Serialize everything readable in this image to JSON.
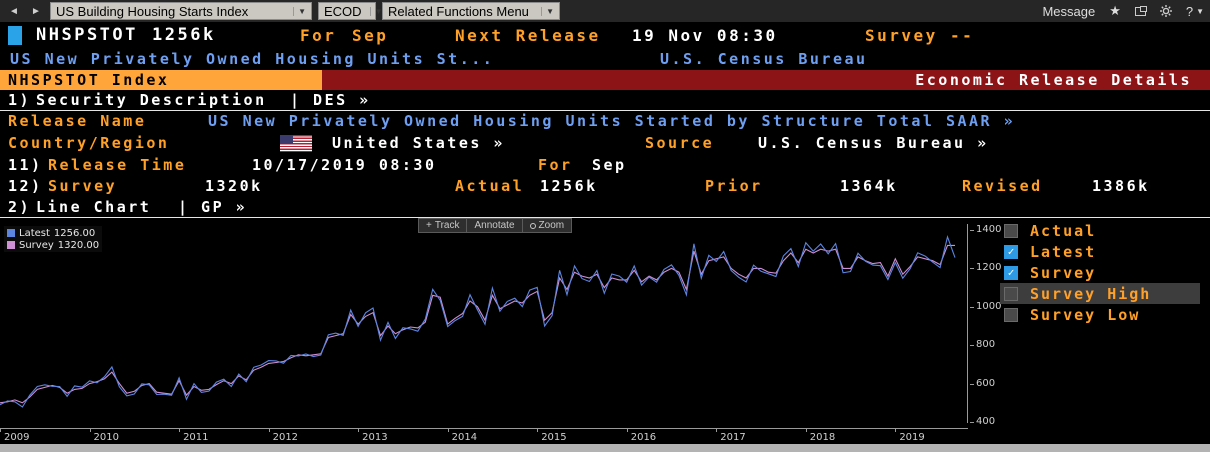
{
  "toolbar": {
    "back_icon": "◄",
    "forward_icon": "►",
    "security_dropdown": "US Building Housing Starts Index",
    "ecod_dropdown": "ECOD",
    "related_functions_dropdown": "Related Functions Menu",
    "message_label": "Message",
    "star_icon": "★",
    "help_label": "?",
    "caret_icon": "▼"
  },
  "header": {
    "ticker": "NHSPSTOT",
    "value": "1256k",
    "for_label": "For",
    "for_period": "Sep",
    "next_release_label": "Next Release",
    "next_release_value": "19 Nov 08:30",
    "survey_label": "Survey",
    "survey_value": "--",
    "description": "US New Privately Owned Housing Units St...",
    "source": "U.S. Census Bureau"
  },
  "titlebar": {
    "left": "NHSPSTOT Index",
    "right": "Economic Release Details"
  },
  "sections": {
    "security_description": {
      "num": "1)",
      "label": "Security Description",
      "link": "| DES  »"
    },
    "line_chart": {
      "num": "2)",
      "label": "Line Chart",
      "link": "| GP  »"
    }
  },
  "details": {
    "release_name_label": "Release Name",
    "release_name_value": "US New Privately Owned Housing Units Started by Structure Total SAAR »",
    "country_label": "Country/Region",
    "country_value": "United States »",
    "source_label": "Source",
    "source_value": "U.S. Census Bureau »",
    "release_time_num": "11)",
    "release_time_label": "Release Time",
    "release_time_value": "10/17/2019 08:30",
    "release_for_label": "For",
    "release_for_value": "Sep",
    "survey_num": "12)",
    "survey_label": "Survey",
    "survey_value": "1320k",
    "actual_label": "Actual",
    "actual_value": "1256k",
    "prior_label": "Prior",
    "prior_value": "1364k",
    "revised_label": "Revised",
    "revised_value": "1386k"
  },
  "chart_tools": {
    "plus_icon": "+",
    "track": "Track",
    "annotate": "Annotate",
    "zoom": "Zoom"
  },
  "chart_legend": [
    {
      "label": "Latest",
      "value": "1256.00",
      "color": "#5b85e0"
    },
    {
      "label": "Survey",
      "value": "1320.00",
      "color": "#cf8fd4"
    }
  ],
  "right_panel": [
    {
      "label": "Actual",
      "checked": false,
      "highlight": false
    },
    {
      "label": "Latest",
      "checked": true,
      "highlight": false
    },
    {
      "label": "Survey",
      "checked": true,
      "highlight": false
    },
    {
      "label": "Survey High",
      "checked": false,
      "highlight": true
    },
    {
      "label": "Survey Low",
      "checked": false,
      "highlight": false
    }
  ],
  "chart_data": {
    "type": "line",
    "title": "US New Privately Owned Housing Units Started by Structure Total SAAR",
    "x_unit": "monthly",
    "x_range": [
      "2009-01",
      "2019-09"
    ],
    "x_years": [
      2009,
      2010,
      2011,
      2012,
      2013,
      2014,
      2015,
      2016,
      2017,
      2018,
      2019
    ],
    "ylim": [
      400,
      1400
    ],
    "yticks": [
      400,
      600,
      800,
      1000,
      1200,
      1400
    ],
    "grid": false,
    "legend_position": "top-left",
    "background": "#000000",
    "series": [
      {
        "name": "Latest",
        "color": "#5b85e0",
        "values": [
          490,
          510,
          505,
          478,
          540,
          585,
          594,
          586,
          585,
          534,
          588,
          581,
          614,
          604,
          636,
          687,
          583,
          536,
          546,
          599,
          594,
          543,
          545,
          539,
          630,
          518,
          600,
          554,
          561,
          608,
          623,
          585,
          650,
          610,
          685,
          697,
          720,
          718,
          706,
          747,
          744,
          754,
          741,
          749,
          854,
          863,
          851,
          983,
          898,
          969,
          994,
          826,
          919,
          835,
          891,
          885,
          873,
          936,
          1091,
          1034,
          897,
          928,
          950,
          1063,
          984,
          909,
          1098,
          977,
          1028,
          1045,
          1001,
          1087,
          1101,
          900,
          954,
          1190,
          1063,
          1213,
          1147,
          1132,
          1189,
          1071,
          1171,
          1160,
          1128,
          1213,
          1113,
          1155,
          1128,
          1195,
          1218,
          1164,
          1062,
          1328,
          1149,
          1268,
          1236,
          1288,
          1189,
          1154,
          1129,
          1217,
          1185,
          1172,
          1158,
          1265,
          1303,
          1210,
          1334,
          1290,
          1327,
          1276,
          1329,
          1177,
          1184,
          1279,
          1237,
          1217,
          1214,
          1142,
          1230,
          1149,
          1199,
          1281,
          1264,
          1233,
          1204,
          1364,
          1256
        ]
      },
      {
        "name": "Survey",
        "color": "#cf8fd4",
        "values": [
          500,
          505,
          515,
          500,
          530,
          570,
          580,
          590,
          580,
          550,
          570,
          575,
          600,
          610,
          625,
          660,
          600,
          550,
          560,
          590,
          600,
          555,
          550,
          545,
          615,
          540,
          585,
          565,
          570,
          595,
          615,
          600,
          640,
          620,
          670,
          685,
          705,
          710,
          715,
          735,
          750,
          745,
          750,
          755,
          840,
          850,
          860,
          960,
          910,
          950,
          970,
          850,
          900,
          860,
          880,
          895,
          890,
          920,
          1060,
          1050,
          910,
          940,
          965,
          1030,
          1000,
          930,
          1060,
          990,
          1010,
          1030,
          1020,
          1060,
          1080,
          930,
          970,
          1150,
          1090,
          1180,
          1160,
          1150,
          1170,
          1100,
          1150,
          1140,
          1140,
          1190,
          1130,
          1160,
          1140,
          1180,
          1200,
          1180,
          1090,
          1290,
          1170,
          1240,
          1250,
          1260,
          1200,
          1170,
          1150,
          1200,
          1200,
          1180,
          1175,
          1240,
          1280,
          1230,
          1300,
          1280,
          1300,
          1290,
          1300,
          1200,
          1200,
          1260,
          1240,
          1225,
          1230,
          1160,
          1250,
          1170,
          1210,
          1260,
          1250,
          1240,
          1220,
          1320,
          1320
        ]
      }
    ]
  }
}
